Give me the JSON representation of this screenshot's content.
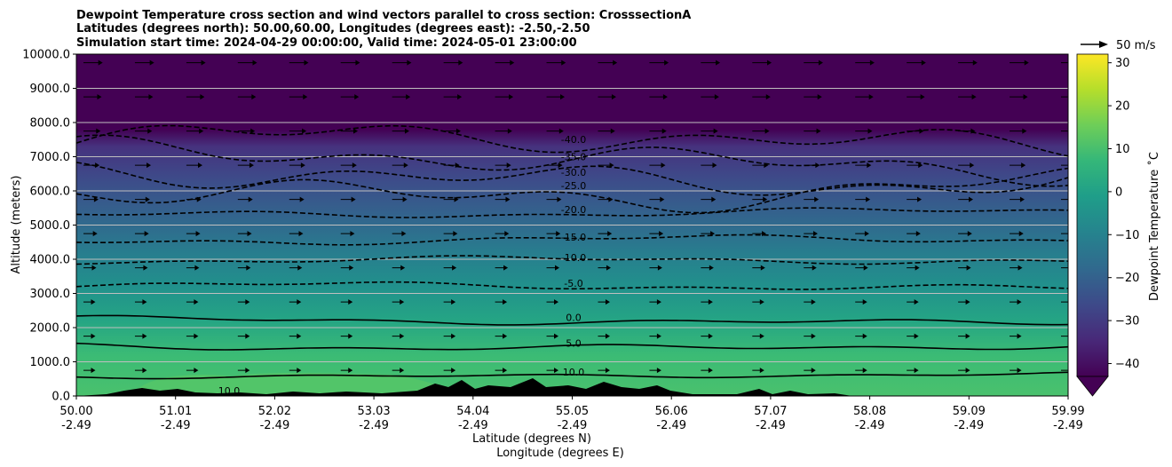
{
  "chart_data": {
    "type": "heatmap",
    "title_lines": [
      "Dewpoint Temperature cross section and wind vectors parallel to cross section: CrosssectionA",
      "Latitudes (degrees north): 50.00,60.00, Longitudes (degrees east): -2.50,-2.50",
      "Simulation start time: 2024-04-29 00:00:00, Valid time: 2024-05-01 23:00:00"
    ],
    "ylabel": "Altitude (meters)",
    "xlabel_lines": [
      "Latitude (degrees N)",
      "Longitude (degrees E)"
    ],
    "ylim": [
      0,
      10000
    ],
    "xlim": [
      50.0,
      59.99
    ],
    "y_ticks": [
      "0.0",
      "1000.0",
      "2000.0",
      "3000.0",
      "4000.0",
      "5000.0",
      "6000.0",
      "7000.0",
      "8000.0",
      "9000.0",
      "10000.0"
    ],
    "x_ticks": [
      {
        "lat": "50.00",
        "lon": "-2.49"
      },
      {
        "lat": "51.01",
        "lon": "-2.49"
      },
      {
        "lat": "52.02",
        "lon": "-2.49"
      },
      {
        "lat": "53.03",
        "lon": "-2.49"
      },
      {
        "lat": "54.04",
        "lon": "-2.49"
      },
      {
        "lat": "55.05",
        "lon": "-2.49"
      },
      {
        "lat": "56.06",
        "lon": "-2.49"
      },
      {
        "lat": "57.07",
        "lon": "-2.49"
      },
      {
        "lat": "58.08",
        "lon": "-2.49"
      },
      {
        "lat": "59.09",
        "lon": "-2.49"
      },
      {
        "lat": "59.99",
        "lon": "-2.49"
      }
    ],
    "grid": "horizontal",
    "colorbar": {
      "label": "Dewpoint Temperature $^\\circ$C",
      "label_display": "Dewpoint Temperature ˚C",
      "range": [
        -43,
        32
      ],
      "ticks": [
        "30",
        "20",
        "10",
        "0",
        "−10",
        "−20",
        "−30",
        "−40"
      ],
      "extend": "min",
      "colormap": [
        "#440154",
        "#482878",
        "#3e4989",
        "#31688e",
        "#26828e",
        "#1f9e89",
        "#35b779",
        "#6ece58",
        "#b5de2b",
        "#fde725"
      ]
    },
    "quiver_key": "50 m/s",
    "contours": [
      {
        "level": -40.0,
        "label": "-40.0",
        "style": "dashed",
        "altitude_m": 7400
      },
      {
        "level": -35.0,
        "label": "-35.0",
        "style": "dashed",
        "altitude_m": 6900
      },
      {
        "level": -30.0,
        "label": "-30.0",
        "style": "dashed",
        "altitude_m": 6450
      },
      {
        "level": -25.0,
        "label": "-25.0",
        "style": "dashed",
        "altitude_m": 6050
      },
      {
        "level": -20.0,
        "label": "-20.0",
        "style": "dashed",
        "altitude_m": 5350
      },
      {
        "level": -15.0,
        "label": "-15.0",
        "style": "dashed",
        "altitude_m": 4550
      },
      {
        "level": -10.0,
        "label": "-10.0",
        "style": "dashed",
        "altitude_m": 3950
      },
      {
        "level": -5.0,
        "label": "-5.0",
        "style": "dashed",
        "altitude_m": 3200
      },
      {
        "level": 0.0,
        "label": "0.0",
        "style": "solid",
        "altitude_m": 2200
      },
      {
        "level": 5.0,
        "label": "5.0",
        "style": "solid",
        "altitude_m": 1450
      },
      {
        "level": 10.0,
        "label": "10.0",
        "style": "solid",
        "altitude_m": 600
      }
    ],
    "terrain_label": "10.0"
  }
}
